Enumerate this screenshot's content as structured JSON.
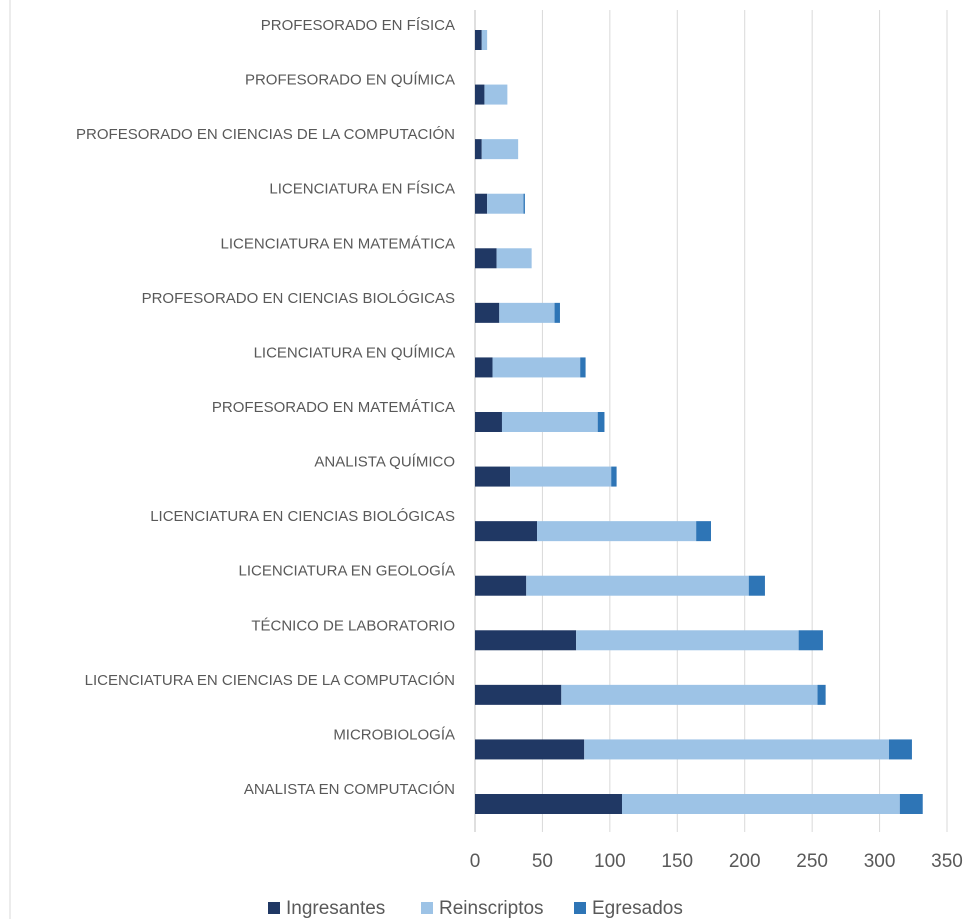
{
  "chart_data": {
    "type": "bar",
    "orientation": "horizontal",
    "stacked": true,
    "categories": [
      "PROFESORADO EN FÍSICA",
      "PROFESORADO EN QUÍMICA",
      "PROFESORADO EN CIENCIAS DE LA COMPUTACIÓN",
      "LICENCIATURA EN FÍSICA",
      "LICENCIATURA EN MATEMÁTICA",
      "PROFESORADO EN CIENCIAS BIOLÓGICAS",
      "LICENCIATURA EN QUÍMICA",
      "PROFESORADO EN MATEMÁTICA",
      "ANALISTA QUÍMICO",
      "LICENCIATURA EN CIENCIAS BIOLÓGICAS",
      "LICENCIATURA EN GEOLOGÍA",
      "TÉCNICO DE LABORATORIO",
      "LICENCIATURA EN CIENCIAS DE LA COMPUTACIÓN",
      "MICROBIOLOGÍA",
      "ANALISTA EN COMPUTACIÓN"
    ],
    "series": [
      {
        "name": "Ingresantes",
        "color": "#203864",
        "values": [
          5,
          7,
          5,
          9,
          16,
          18,
          13,
          20,
          26,
          46,
          38,
          75,
          64,
          81,
          109
        ]
      },
      {
        "name": "Reinscriptos",
        "color": "#9dc3e6",
        "values": [
          4,
          17,
          27,
          27,
          26,
          41,
          65,
          71,
          75,
          118,
          165,
          165,
          190,
          226,
          206
        ]
      },
      {
        "name": "Egresados",
        "color": "#2e75b6",
        "values": [
          0,
          0,
          0,
          1,
          0,
          4,
          4,
          5,
          4,
          11,
          12,
          18,
          6,
          17,
          17
        ]
      }
    ],
    "xlim": [
      0,
      350
    ],
    "xticks": [
      0,
      50,
      100,
      150,
      200,
      250,
      300,
      350
    ],
    "grid": true,
    "legend": "bottom"
  }
}
